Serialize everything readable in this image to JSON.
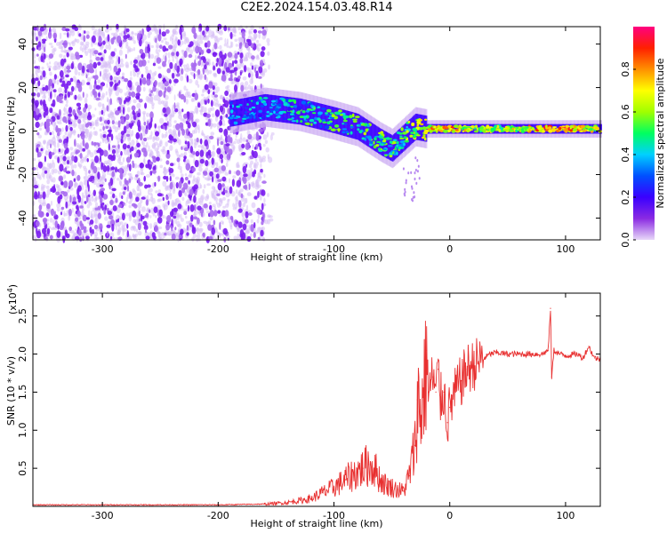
{
  "figure": {
    "title": "C2E2.2024.154.03.48.R14"
  },
  "chart_data": [
    {
      "type": "heatmap",
      "title": "",
      "xlabel": "Height of straight line (km)",
      "ylabel": "Frequency (Hz)",
      "xlim": [
        -360,
        130
      ],
      "ylim": [
        -50,
        48
      ],
      "xticks": [
        -300,
        -200,
        -100,
        0,
        100
      ],
      "yticks": [
        -40,
        -20,
        0,
        20,
        40
      ],
      "grid": false,
      "colorbar": {
        "label": "Normalized spectral amplitude",
        "range": [
          0,
          1
        ],
        "ticks": [
          0.0,
          0.2,
          0.4,
          0.6,
          0.8
        ],
        "colormap": [
          "#e8d8f8",
          "#8a2be2",
          "#3a00ff",
          "#0050ff",
          "#00d0ff",
          "#00ff60",
          "#a0ff00",
          "#ffff00",
          "#ff9000",
          "#ff2000",
          "#ff0080"
        ]
      },
      "ridge": {
        "description_points_x": [
          -190,
          -160,
          -130,
          -100,
          -80,
          -60,
          -50,
          -40,
          -30,
          -20,
          0,
          20,
          50,
          80,
          100,
          130
        ],
        "frequency_hz": [
          8,
          11,
          9,
          5,
          2,
          -5,
          -8,
          -3,
          2,
          1,
          1,
          1,
          1,
          1,
          1,
          1
        ],
        "amplitude": [
          0.25,
          0.35,
          0.4,
          0.45,
          0.45,
          0.5,
          0.45,
          0.5,
          0.55,
          0.7,
          0.75,
          0.6,
          0.6,
          0.75,
          0.8,
          0.55
        ]
      },
      "noise_region_x": [
        -360,
        -160
      ]
    },
    {
      "type": "line",
      "title": "",
      "xlabel": "Height of straight line (km)",
      "ylabel": "SNR (10 * v/v)",
      "y_multiplier": "(x10^4)",
      "y_multiplier_base": "(x10",
      "y_multiplier_exp": "4",
      "xlim": [
        -360,
        130
      ],
      "ylim": [
        0,
        2.8
      ],
      "xticks": [
        -300,
        -200,
        -100,
        0,
        100
      ],
      "yticks": [
        0.5,
        1.0,
        1.5,
        2.0,
        2.5
      ],
      "color": "#e83030",
      "series": [
        {
          "x": [
            -360,
            -300,
            -250,
            -200,
            -160,
            -140,
            -120,
            -110,
            -100,
            -95,
            -90,
            -85,
            -80,
            -75,
            -70,
            -65,
            -60,
            -55,
            -50,
            -45,
            -40,
            -35,
            -30,
            -28,
            -25,
            -22,
            -20,
            -18,
            -15,
            -12,
            -10,
            -8,
            -5,
            -2,
            0,
            5,
            10,
            15,
            20,
            25,
            30,
            35,
            40,
            50,
            60,
            70,
            80,
            85,
            87,
            88,
            90,
            95,
            100,
            110,
            115,
            120,
            125,
            130
          ],
          "y": [
            0.02,
            0.02,
            0.02,
            0.02,
            0.03,
            0.05,
            0.1,
            0.18,
            0.25,
            0.3,
            0.35,
            0.4,
            0.45,
            0.5,
            0.55,
            0.5,
            0.35,
            0.28,
            0.25,
            0.22,
            0.2,
            0.4,
            0.8,
            1.4,
            1.2,
            1.6,
            2.05,
            1.5,
            1.7,
            1.5,
            1.8,
            1.4,
            1.5,
            1.1,
            1.3,
            1.5,
            1.65,
            1.8,
            1.85,
            1.9,
            1.95,
            2.0,
            2.02,
            2.0,
            2.0,
            2.0,
            2.0,
            2.05,
            2.6,
            1.7,
            2.05,
            2.0,
            1.98,
            2.0,
            1.95,
            2.1,
            1.95,
            1.93
          ]
        }
      ]
    }
  ]
}
